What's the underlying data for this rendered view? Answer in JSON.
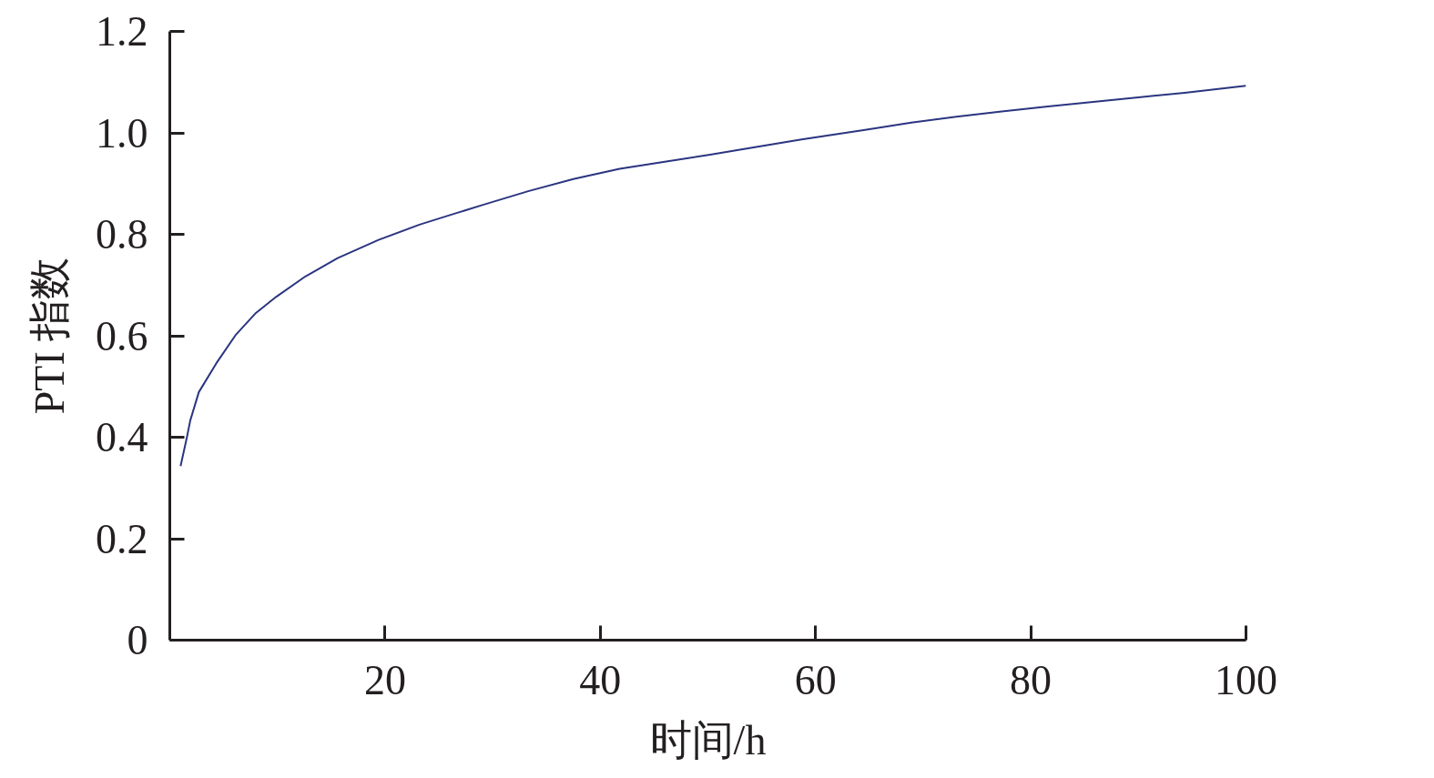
{
  "chart_data": {
    "type": "line",
    "xlabel": "时间/h",
    "ylabel": "PTI 指数",
    "x": [
      1.0,
      1.6,
      1.9,
      2.7,
      4.3,
      6.1,
      8.0,
      9.9,
      12.6,
      15.6,
      19.4,
      23.2,
      26.5,
      29.1,
      33.3,
      37.5,
      41.8,
      46.0,
      50.2,
      54.5,
      58.7,
      64.6,
      68.9,
      73.1,
      77.3,
      81.6,
      85.8,
      90.0,
      94.3,
      100
    ],
    "series": [
      {
        "color": "#2b3580",
        "values": [
          0.343,
          0.401,
          0.433,
          0.489,
          0.545,
          0.601,
          0.645,
          0.677,
          0.717,
          0.753,
          0.789,
          0.819,
          0.841,
          0.858,
          0.885,
          0.909,
          0.929,
          0.943,
          0.957,
          0.972,
          0.987,
          1.006,
          1.02,
          1.032,
          1.042,
          1.052,
          1.061,
          1.07,
          1.079,
          1.093
        ]
      }
    ],
    "xlim": [
      0,
      100
    ],
    "xticks": [
      20,
      40,
      60,
      80,
      100
    ],
    "ylim": [
      0,
      1.2
    ],
    "yticks": [
      {
        "value": 0,
        "label": "0"
      },
      {
        "value": 0.2,
        "label": "0.2"
      },
      {
        "value": 0.4,
        "label": "0.4"
      },
      {
        "value": 0.6,
        "label": "0.6"
      },
      {
        "value": 0.8,
        "label": "0.8"
      },
      {
        "value": 1.0,
        "label": "1.0"
      },
      {
        "value": 1.2,
        "label": "1.2"
      }
    ],
    "grid": false,
    "line_style": "solid"
  }
}
